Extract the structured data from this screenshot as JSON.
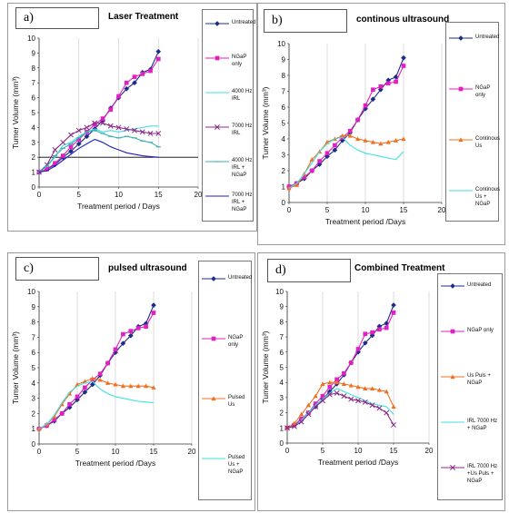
{
  "panels": [
    {
      "label": "a)",
      "title": "Laser Treatment",
      "xlabel": "Treatment period / Days",
      "ylabel": "Tumer Volume (mm³)",
      "reference_line_y": 2
    },
    {
      "label": "b)",
      "title": "continous ultrasound",
      "xlabel": "Treatment period /Days",
      "ylabel": "Tumer Volume (mm³)"
    },
    {
      "label": "c)",
      "title": "pulsed ultrasound",
      "xlabel": "Treatment period /Days",
      "ylabel": "Tumer Volume (mm³)"
    },
    {
      "label": "d)",
      "title": "Combined Treatment",
      "xlabel": "Treatment period /Days",
      "ylabel": "Tumer Volume (mm³)"
    }
  ],
  "chart_data": [
    {
      "type": "line",
      "title": "Laser Treatment",
      "xlabel": "Treatment period / Days",
      "ylabel": "Tumer Volume (mm³)",
      "xlim": [
        0,
        20
      ],
      "ylim": [
        0,
        10
      ],
      "xticks": [
        0,
        5,
        10,
        15,
        20
      ],
      "yticks": [
        0,
        1,
        2,
        3,
        4,
        5,
        6,
        7,
        8,
        9,
        10
      ],
      "legend_position": "right",
      "series": [
        {
          "name": "Untreated",
          "color": "#1f2c8a",
          "marker": "diamond",
          "x": [
            0,
            1,
            2,
            3,
            4,
            5,
            6,
            7,
            8,
            9,
            10,
            11,
            12,
            13,
            14,
            15
          ],
          "y": [
            1.0,
            1.2,
            1.5,
            2.0,
            2.4,
            2.9,
            3.4,
            3.9,
            4.5,
            5.3,
            6.0,
            6.6,
            7.0,
            7.7,
            7.9,
            9.1
          ]
        },
        {
          "name": "NGaP only",
          "color": "#e020c0",
          "marker": "square",
          "x": [
            0,
            1,
            2,
            3,
            4,
            5,
            6,
            7,
            8,
            9,
            10,
            11,
            12,
            13,
            14,
            15
          ],
          "y": [
            1.0,
            1.2,
            1.6,
            2.1,
            2.7,
            3.2,
            3.7,
            4.2,
            4.6,
            5.2,
            6.1,
            7.0,
            7.4,
            7.6,
            7.8,
            8.6
          ]
        },
        {
          "name": "4000 Hz IRL",
          "color": "#40e0e0",
          "marker": "none",
          "x": [
            0,
            1,
            2,
            3,
            4,
            5,
            6,
            7,
            8,
            9,
            10,
            11,
            12,
            13,
            14,
            15
          ],
          "y": [
            1.0,
            1.4,
            2.0,
            2.8,
            3.0,
            3.4,
            3.7,
            3.9,
            3.7,
            3.8,
            3.7,
            3.8,
            3.9,
            4.0,
            4.1,
            4.1
          ]
        },
        {
          "name": "7000 Hz IRL",
          "color": "#8a2a8a",
          "marker": "x",
          "x": [
            0,
            1,
            2,
            3,
            4,
            5,
            6,
            7,
            8,
            9,
            10,
            11,
            12,
            13,
            14,
            15
          ],
          "y": [
            1.0,
            1.5,
            2.5,
            3.0,
            3.5,
            3.8,
            4.0,
            4.3,
            4.3,
            4.1,
            4.0,
            3.9,
            3.8,
            3.7,
            3.6,
            3.6
          ]
        },
        {
          "name": "4000 Hz IRL + NGaP",
          "color": "#40b0b0",
          "marker": "dash",
          "x": [
            0,
            1,
            2,
            3,
            4,
            5,
            6,
            7,
            8,
            9,
            10,
            11,
            12,
            13,
            14,
            15
          ],
          "y": [
            1.0,
            1.4,
            2.1,
            2.6,
            2.9,
            3.3,
            3.7,
            3.8,
            3.6,
            3.4,
            3.3,
            3.4,
            3.3,
            3.1,
            3.0,
            2.7
          ]
        },
        {
          "name": "7000 Hz IRL + NGaP",
          "color": "#2020c0",
          "marker": "none",
          "x": [
            0,
            1,
            2,
            3,
            4,
            5,
            6,
            7,
            8,
            9,
            10,
            11,
            12,
            13,
            14,
            15
          ],
          "y": [
            1.0,
            1.1,
            1.4,
            1.8,
            2.2,
            2.6,
            2.9,
            3.2,
            3.0,
            2.7,
            2.5,
            2.3,
            2.2,
            2.1,
            2.05,
            2.0
          ]
        }
      ]
    },
    {
      "type": "line",
      "title": "continous ultrasound",
      "xlabel": "Treatment period /Days",
      "ylabel": "Tumer Volume (mm³)",
      "xlim": [
        0,
        20
      ],
      "ylim": [
        0,
        10
      ],
      "xticks": [
        0,
        5,
        10,
        15,
        20
      ],
      "yticks": [
        0,
        1,
        2,
        3,
        4,
        5,
        6,
        7,
        8,
        9,
        10
      ],
      "legend_position": "right",
      "series": [
        {
          "name": "Untreated",
          "color": "#1f2c8a",
          "marker": "diamond",
          "x": [
            0,
            1,
            2,
            3,
            4,
            5,
            6,
            7,
            8,
            9,
            10,
            11,
            12,
            13,
            14,
            15
          ],
          "y": [
            1.0,
            1.2,
            1.5,
            2.0,
            2.4,
            2.9,
            3.3,
            3.9,
            4.4,
            5.2,
            5.9,
            6.5,
            7.1,
            7.7,
            7.9,
            9.1
          ]
        },
        {
          "name": "NGaP only",
          "color": "#e020c0",
          "marker": "square",
          "x": [
            0,
            1,
            2,
            3,
            4,
            5,
            6,
            7,
            8,
            9,
            10,
            11,
            12,
            13,
            14,
            15
          ],
          "y": [
            1.0,
            1.2,
            1.6,
            2.0,
            2.6,
            3.1,
            3.6,
            4.1,
            4.5,
            5.2,
            6.1,
            7.1,
            7.3,
            7.5,
            7.6,
            8.6
          ]
        },
        {
          "name": "Continous Us",
          "color": "#f07020",
          "marker": "triangle",
          "x": [
            0,
            1,
            2,
            3,
            4,
            5,
            6,
            7,
            8,
            9,
            10,
            11,
            12,
            13,
            14,
            15
          ],
          "y": [
            0.9,
            1.1,
            1.8,
            2.7,
            3.2,
            3.8,
            4.0,
            4.2,
            4.2,
            4.0,
            3.9,
            3.8,
            3.7,
            3.8,
            3.9,
            4.0
          ]
        },
        {
          "name": "Continous Us + NGaP",
          "color": "#40e0e0",
          "marker": "none",
          "x": [
            0,
            1,
            2,
            3,
            4,
            5,
            6,
            7,
            8,
            9,
            10,
            11,
            12,
            13,
            14,
            15
          ],
          "y": [
            0.9,
            1.2,
            1.8,
            2.5,
            3.2,
            3.7,
            4.0,
            4.1,
            3.6,
            3.3,
            3.1,
            3.0,
            2.9,
            2.8,
            2.7,
            3.2
          ]
        }
      ]
    },
    {
      "type": "line",
      "title": "pulsed ultrasound",
      "xlabel": "Treatment period /Days",
      "ylabel": "Tumer Volume (mm³)",
      "xlim": [
        0,
        20
      ],
      "ylim": [
        0,
        10
      ],
      "xticks": [
        0,
        5,
        10,
        15,
        20
      ],
      "yticks": [
        0,
        1,
        2,
        3,
        4,
        5,
        6,
        7,
        8,
        9,
        10
      ],
      "legend_position": "right",
      "series": [
        {
          "name": "Untreated",
          "color": "#1f2c8a",
          "marker": "diamond",
          "x": [
            0,
            1,
            2,
            3,
            4,
            5,
            6,
            7,
            8,
            9,
            10,
            11,
            12,
            13,
            14,
            15
          ],
          "y": [
            1.0,
            1.2,
            1.5,
            2.0,
            2.4,
            2.9,
            3.4,
            3.9,
            4.5,
            5.3,
            6.0,
            6.6,
            7.1,
            7.7,
            7.9,
            9.1
          ]
        },
        {
          "name": "NGaP only",
          "color": "#e020c0",
          "marker": "square",
          "x": [
            0,
            1,
            2,
            3,
            4,
            5,
            6,
            7,
            8,
            9,
            10,
            11,
            12,
            13,
            14,
            15
          ],
          "y": [
            1.0,
            1.2,
            1.6,
            2.0,
            2.6,
            3.1,
            3.7,
            4.2,
            4.6,
            5.3,
            6.2,
            7.2,
            7.4,
            7.6,
            7.7,
            8.6
          ]
        },
        {
          "name": "Pulsed Us",
          "color": "#f07020",
          "marker": "triangle",
          "x": [
            0,
            1,
            2,
            3,
            4,
            5,
            6,
            7,
            8,
            9,
            10,
            11,
            12,
            13,
            14,
            15
          ],
          "y": [
            1.0,
            1.3,
            1.8,
            2.6,
            3.3,
            3.9,
            4.1,
            4.3,
            4.2,
            4.0,
            3.9,
            3.8,
            3.8,
            3.8,
            3.8,
            3.7
          ]
        },
        {
          "name": "Pulsed Us + NGaP",
          "color": "#40e0e0",
          "marker": "none",
          "x": [
            0,
            1,
            2,
            3,
            4,
            5,
            6,
            7,
            8,
            9,
            10,
            11,
            12,
            13,
            14,
            15
          ],
          "y": [
            1.0,
            1.3,
            1.9,
            2.7,
            3.4,
            3.8,
            4.0,
            4.1,
            3.6,
            3.3,
            3.1,
            3.0,
            2.9,
            2.8,
            2.75,
            2.7
          ]
        }
      ]
    },
    {
      "type": "line",
      "title": "Combined Treatment",
      "xlabel": "Treatment period /Days",
      "ylabel": "Tumer Volume (mm³)",
      "xlim": [
        0,
        20
      ],
      "ylim": [
        0,
        10
      ],
      "xticks": [
        0,
        5,
        10,
        15,
        20
      ],
      "yticks": [
        0,
        1,
        2,
        3,
        4,
        5,
        6,
        7,
        8,
        9,
        10
      ],
      "legend_position": "right",
      "series": [
        {
          "name": "Untreated",
          "color": "#1f2c8a",
          "marker": "diamond",
          "x": [
            0,
            1,
            2,
            3,
            4,
            5,
            6,
            7,
            8,
            9,
            10,
            11,
            12,
            13,
            14,
            15
          ],
          "y": [
            1.0,
            1.2,
            1.5,
            2.0,
            2.4,
            2.9,
            3.4,
            3.9,
            4.5,
            5.3,
            6.0,
            6.6,
            7.1,
            7.7,
            7.9,
            9.1
          ]
        },
        {
          "name": "NGaP only",
          "color": "#e020c0",
          "marker": "square",
          "x": [
            0,
            1,
            2,
            3,
            4,
            5,
            6,
            7,
            8,
            9,
            10,
            11,
            12,
            13,
            14,
            15
          ],
          "y": [
            1.0,
            1.2,
            1.6,
            2.0,
            2.6,
            3.1,
            3.7,
            4.2,
            4.6,
            5.3,
            6.2,
            7.2,
            7.3,
            7.5,
            7.6,
            8.6
          ]
        },
        {
          "name": "Us Puls + NGaP",
          "color": "#f07020",
          "marker": "triangle",
          "x": [
            0,
            1,
            2,
            3,
            4,
            5,
            6,
            7,
            8,
            9,
            10,
            11,
            12,
            13,
            14,
            15
          ],
          "y": [
            1.0,
            1.3,
            1.9,
            2.5,
            3.1,
            3.9,
            4.0,
            4.0,
            3.9,
            3.8,
            3.7,
            3.6,
            3.6,
            3.5,
            3.4,
            2.4
          ]
        },
        {
          "name": "IRL 7000 Hz + NGaP",
          "color": "#40e0e0",
          "marker": "none",
          "x": [
            0,
            1,
            2,
            3,
            4,
            5,
            6,
            7,
            8,
            9,
            10,
            11,
            12,
            13,
            14,
            15
          ],
          "y": [
            1.0,
            1.1,
            1.5,
            2.0,
            2.5,
            2.9,
            3.3,
            3.6,
            3.4,
            3.2,
            3.0,
            2.8,
            2.6,
            2.5,
            2.4,
            1.9
          ]
        },
        {
          "name": "IRL 7000 Hz +Us Puls + NGaP",
          "color": "#8a2a8a",
          "marker": "x",
          "x": [
            0,
            1,
            2,
            3,
            4,
            5,
            6,
            7,
            8,
            9,
            10,
            11,
            12,
            13,
            14,
            15
          ],
          "y": [
            1.0,
            1.1,
            1.4,
            1.9,
            2.4,
            2.8,
            3.2,
            3.3,
            3.1,
            2.9,
            2.8,
            2.7,
            2.5,
            2.3,
            2.0,
            1.2
          ]
        }
      ]
    }
  ]
}
